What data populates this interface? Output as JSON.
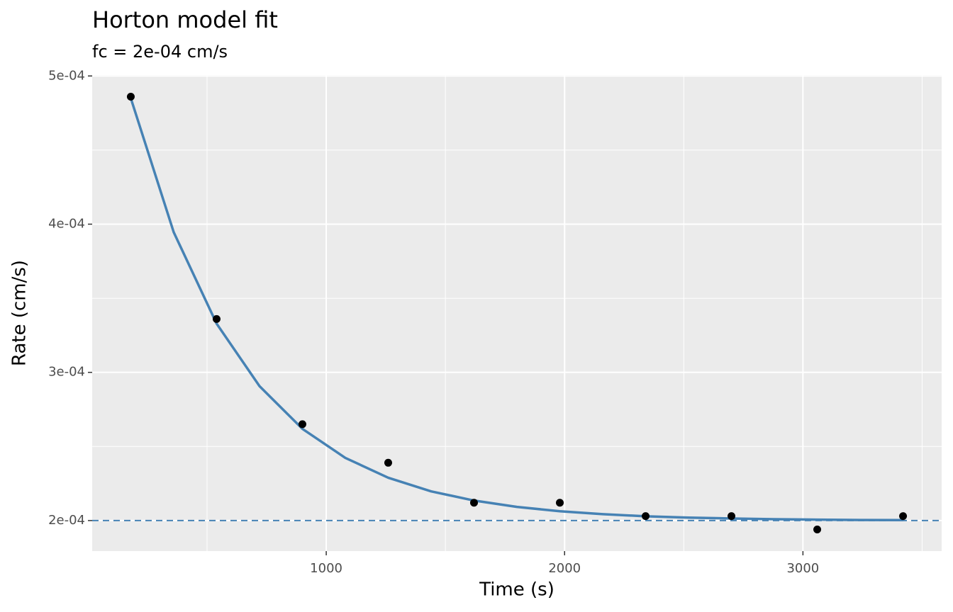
{
  "chart_data": {
    "type": "scatter",
    "title": "Horton model fit",
    "subtitle": "fc = 2e-04 cm/s",
    "x_label": "Time (s)",
    "y_label": "Rate (cm/s)",
    "xlim": [
      18,
      3582
    ],
    "ylim": [
      0.0001794,
      0.0005006
    ],
    "xticks": [
      1000,
      2000,
      3000
    ],
    "xminor": [
      500,
      1500,
      2500,
      3500
    ],
    "yticks": [
      {
        "value": 0.0002,
        "label": "2e-04"
      },
      {
        "value": 0.0003,
        "label": "3e-04"
      },
      {
        "value": 0.0004,
        "label": "4e-04"
      },
      {
        "value": 0.0005,
        "label": "5e-04"
      }
    ],
    "yminor": [
      0.00025,
      0.00035,
      0.00045
    ],
    "grid": true,
    "points": {
      "color": "#000000",
      "x": [
        180,
        540,
        900,
        1260,
        1620,
        1980,
        2340,
        2700,
        3060,
        3420
      ],
      "values": [
        0.000486,
        0.000336,
        0.000265,
        0.000239,
        0.000212,
        0.000212,
        0.000203,
        0.000203,
        0.000194,
        0.000203
      ]
    },
    "fit": {
      "color": "#4682b4",
      "x": [
        180,
        360,
        540,
        720,
        900,
        1080,
        1260,
        1440,
        1620,
        1800,
        1980,
        2160,
        2340,
        2520,
        2700,
        2880,
        3060,
        3240,
        3420
      ],
      "values": [
        0.000485,
        0.0003946,
        0.0003329,
        0.0002907,
        0.0002619,
        0.0002423,
        0.0002289,
        0.0002197,
        0.0002135,
        0.0002092,
        0.0002063,
        0.0002043,
        0.0002029,
        0.000202,
        0.0002014,
        0.0002009,
        0.0002006,
        0.0002004,
        0.0002003
      ]
    },
    "hline": {
      "value": 0.0002,
      "color": "#4682b4",
      "dashed": true
    }
  }
}
